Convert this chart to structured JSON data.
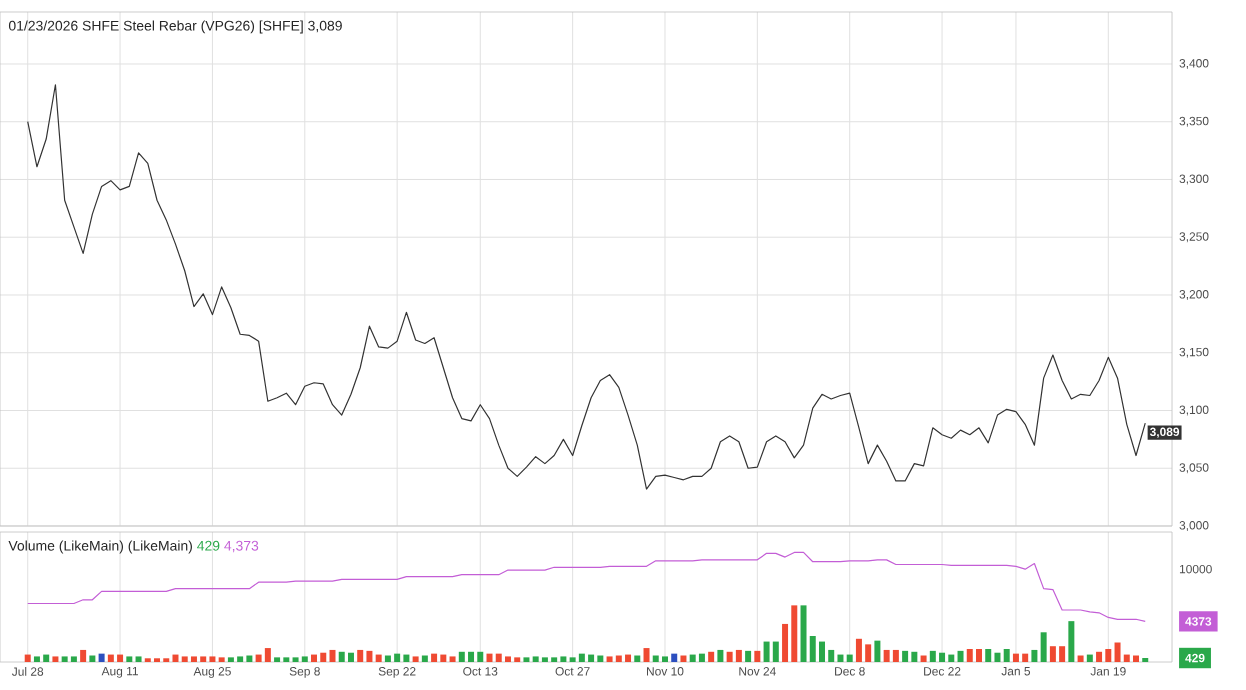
{
  "chart_data": [
    {
      "type": "line",
      "title": "01/23/2026 SHFE Steel Rebar (VPG26) [SHFE] 3,089",
      "categories": [
        null,
        null,
        null,
        null,
        null,
        null,
        null,
        null,
        null,
        null,
        null,
        null,
        null,
        null,
        null,
        null,
        null,
        null,
        null,
        null,
        null,
        null,
        null,
        null,
        null,
        null,
        null,
        null,
        null,
        null,
        null,
        null,
        null,
        null,
        null,
        null,
        null,
        null,
        null,
        null,
        null,
        null,
        null,
        null,
        null,
        null,
        null,
        null,
        null,
        null,
        null,
        null,
        null,
        null,
        null,
        null,
        null,
        null,
        null,
        null,
        null,
        null,
        null,
        null,
        null,
        null,
        null,
        null,
        null,
        null,
        null,
        null,
        null,
        null,
        null,
        null,
        null,
        null,
        null,
        null,
        null,
        null,
        null,
        null,
        null,
        null,
        null,
        null,
        null,
        null,
        null,
        null,
        null,
        null,
        null,
        null,
        null,
        null,
        null,
        null,
        null,
        null,
        null,
        null,
        null,
        null,
        null,
        null,
        null,
        null,
        null,
        null,
        null,
        null,
        null,
        null,
        null,
        null,
        null,
        null,
        null,
        null
      ],
      "series": [
        {
          "color": "#333333",
          "values": [
            3350,
            3311,
            3335,
            3382,
            3282,
            3259,
            3236,
            3270,
            3294,
            3299,
            3291,
            3294,
            3323,
            3314,
            3282,
            3265,
            3244,
            3221,
            3190,
            3201,
            3183,
            3207,
            3189,
            3166,
            3165,
            3160,
            3108,
            3111,
            3115,
            3105,
            3121,
            3124,
            3123,
            3105,
            3096,
            3114,
            3137,
            3173,
            3155,
            3154,
            3160,
            3185,
            3161,
            3158,
            3163,
            3137,
            3111,
            3093,
            3091,
            3105,
            3093,
            3070,
            3050,
            3043,
            3051,
            3060,
            3054,
            3061,
            3075,
            3061,
            3087,
            3111,
            3126,
            3131,
            3120,
            3096,
            3070,
            3032,
            3043,
            3044,
            3042,
            3040,
            3043,
            3043,
            3050,
            3073,
            3078,
            3073,
            3050,
            3051,
            3073,
            3078,
            3073,
            3059,
            3070,
            3102,
            3114,
            3110,
            3113,
            3115,
            3085,
            3054,
            3070,
            3056,
            3039,
            3039,
            3054,
            3052,
            3085,
            3079,
            3076,
            3083,
            3079,
            3085,
            3072,
            3096,
            3101,
            3099,
            3088,
            3070,
            3128,
            3148,
            3126,
            3110,
            3114,
            3113,
            3126,
            3146,
            3128,
            3088,
            3061,
            3089
          ],
          "value_labels": [
            null,
            null,
            null,
            null,
            null,
            null,
            null,
            null,
            null,
            null,
            null,
            null,
            null,
            null,
            null,
            null,
            null,
            null,
            null,
            null,
            null,
            null,
            null,
            null,
            null,
            null,
            null,
            null,
            null,
            null,
            null,
            null,
            null,
            null,
            null,
            null,
            null,
            null,
            null,
            null,
            null,
            null,
            null,
            null,
            null,
            null,
            null,
            null,
            null,
            null,
            null,
            null,
            null,
            null,
            null,
            null,
            null,
            null,
            null,
            null,
            null,
            null,
            null,
            null,
            null,
            null,
            null,
            null,
            null,
            null,
            null,
            null,
            null,
            null,
            null,
            null,
            null,
            null,
            null,
            null,
            null,
            null,
            null,
            null,
            null,
            null,
            null,
            null,
            null,
            null,
            null,
            null,
            null,
            null,
            null,
            null,
            null,
            null,
            null,
            null,
            null,
            null,
            null,
            null,
            null,
            null,
            null,
            null,
            null,
            null,
            null,
            null,
            null,
            null,
            null,
            null,
            null,
            null,
            null,
            null,
            null,
            "3,089"
          ]
        }
      ],
      "ylim": [
        3000,
        3445
      ],
      "yticks": [
        {
          "value": 3000,
          "label": "3,000"
        },
        {
          "value": 3050,
          "label": "3,050"
        },
        {
          "value": 3100,
          "label": "3,100"
        },
        {
          "value": 3150,
          "label": "3,150"
        },
        {
          "value": 3200,
          "label": "3,200"
        },
        {
          "value": 3250,
          "label": "3,250"
        },
        {
          "value": 3300,
          "label": "3,300"
        },
        {
          "value": 3350,
          "label": "3,350"
        },
        {
          "value": 3400,
          "label": "3,400"
        }
      ],
      "grid": true
    },
    {
      "type": "bar",
      "title": "Volume (LikeMain)  (LikeMain)",
      "annotations": [
        "429",
        "4,373"
      ],
      "categories": [
        "Jul 28",
        null,
        null,
        null,
        null,
        null,
        null,
        null,
        null,
        null,
        "Aug 11",
        null,
        null,
        null,
        null,
        null,
        null,
        null,
        null,
        null,
        "Aug 25",
        null,
        null,
        null,
        null,
        null,
        null,
        null,
        null,
        null,
        "Sep 8",
        null,
        null,
        null,
        null,
        null,
        null,
        null,
        null,
        null,
        "Sep 22",
        null,
        null,
        null,
        null,
        null,
        null,
        null,
        null,
        "Oct 13",
        null,
        null,
        null,
        null,
        null,
        null,
        null,
        null,
        null,
        "Oct 27",
        null,
        null,
        null,
        null,
        null,
        null,
        null,
        null,
        null,
        "Nov 10",
        null,
        null,
        null,
        null,
        null,
        null,
        null,
        null,
        null,
        "Nov 24",
        null,
        null,
        null,
        null,
        null,
        null,
        null,
        null,
        null,
        "Dec 8",
        null,
        null,
        null,
        null,
        null,
        null,
        null,
        null,
        null,
        "Dec 22",
        null,
        null,
        null,
        null,
        null,
        null,
        null,
        "Jan 5",
        null,
        null,
        null,
        null,
        null,
        null,
        null,
        null,
        null,
        "Jan 19",
        null,
        null,
        null,
        null
      ],
      "series": [
        {
          "type": "bar",
          "color": "#2aa84a",
          "values": [
            800,
            600,
            800,
            600,
            600,
            600,
            1300,
            700,
            900,
            800,
            800,
            600,
            600,
            400,
            400,
            400,
            800,
            600,
            600,
            600,
            600,
            500,
            500,
            600,
            700,
            800,
            1500,
            500,
            500,
            500,
            600,
            800,
            1000,
            1300,
            1100,
            1000,
            1300,
            1200,
            800,
            700,
            900,
            800,
            600,
            700,
            900,
            800,
            600,
            1100,
            1100,
            1100,
            900,
            900,
            600,
            500,
            500,
            600,
            500,
            500,
            600,
            500,
            900,
            800,
            700,
            600,
            700,
            800,
            700,
            1500,
            700,
            600,
            900,
            700,
            800,
            900,
            1100,
            1300,
            1100,
            1300,
            1200,
            1200,
            2200,
            2200,
            4100,
            6100,
            6100,
            2800,
            2200,
            1300,
            800,
            800,
            2500,
            1900,
            2300,
            1300,
            1300,
            1200,
            1100,
            700,
            1200,
            1000,
            800,
            1200,
            1400,
            1400,
            1400,
            1000,
            1400,
            900,
            900,
            1300,
            3200,
            1700,
            1700,
            4400,
            700,
            800,
            1100,
            1400,
            2100,
            800,
            700,
            429
          ],
          "colors": [
            "#ef4a32",
            "#2aa84a",
            "#2aa84a",
            "#ef4a32",
            "#2aa84a",
            "#2aa84a",
            "#ef4a32",
            "#2aa84a",
            "#2c4fbf",
            "#ef4a32",
            "#ef4a32",
            "#2aa84a",
            "#2aa84a",
            "#ef4a32",
            "#ef4a32",
            "#ef4a32",
            "#ef4a32",
            "#ef4a32",
            "#ef4a32",
            "#ef4a32",
            "#ef4a32",
            "#ef4a32",
            "#2aa84a",
            "#2aa84a",
            "#2aa84a",
            "#ef4a32",
            "#ef4a32",
            "#2aa84a",
            "#2aa84a",
            "#2aa84a",
            "#2aa84a",
            "#ef4a32",
            "#ef4a32",
            "#ef4a32",
            "#2aa84a",
            "#2aa84a",
            "#ef4a32",
            "#ef4a32",
            "#ef4a32",
            "#2aa84a",
            "#2aa84a",
            "#2aa84a",
            "#ef4a32",
            "#2aa84a",
            "#ef4a32",
            "#ef4a32",
            "#ef4a32",
            "#2aa84a",
            "#2aa84a",
            "#2aa84a",
            "#ef4a32",
            "#ef4a32",
            "#ef4a32",
            "#ef4a32",
            "#2aa84a",
            "#2aa84a",
            "#2aa84a",
            "#2aa84a",
            "#2aa84a",
            "#2aa84a",
            "#2aa84a",
            "#2aa84a",
            "#2aa84a",
            "#ef4a32",
            "#ef4a32",
            "#ef4a32",
            "#2aa84a",
            "#ef4a32",
            "#2aa84a",
            "#2aa84a",
            "#2c4fbf",
            "#ef4a32",
            "#2aa84a",
            "#2aa84a",
            "#ef4a32",
            "#2aa84a",
            "#ef4a32",
            "#ef4a32",
            "#2aa84a",
            "#ef4a32",
            "#2aa84a",
            "#2aa84a",
            "#ef4a32",
            "#ef4a32",
            "#2aa84a",
            "#2aa84a",
            "#2aa84a",
            "#2aa84a",
            "#2aa84a",
            "#2aa84a",
            "#ef4a32",
            "#ef4a32",
            "#2aa84a",
            "#ef4a32",
            "#ef4a32",
            "#2aa84a",
            "#2aa84a",
            "#ef4a32",
            "#2aa84a",
            "#2aa84a",
            "#2aa84a",
            "#2aa84a",
            "#ef4a32",
            "#ef4a32",
            "#2aa84a",
            "#2aa84a",
            "#2aa84a",
            "#ef4a32",
            "#ef4a32",
            "#2aa84a",
            "#2aa84a",
            "#ef4a32",
            "#ef4a32",
            "#2aa84a",
            "#ef4a32",
            "#2aa84a",
            "#ef4a32",
            "#ef4a32",
            "#ef4a32",
            "#ef4a32",
            "#ef4a32",
            "#2aa84a"
          ]
        },
        {
          "type": "line",
          "color": "#c35ed6",
          "values": [
            6300,
            6300,
            6300,
            6300,
            6300,
            6300,
            6700,
            6700,
            7600,
            7600,
            7600,
            7600,
            7600,
            7600,
            7600,
            7600,
            7900,
            7900,
            7900,
            7900,
            7900,
            7900,
            7900,
            7900,
            7900,
            8600,
            8600,
            8600,
            8600,
            8700,
            8700,
            8700,
            8700,
            8700,
            8900,
            8900,
            8900,
            8900,
            8900,
            8900,
            8900,
            9200,
            9200,
            9200,
            9200,
            9200,
            9200,
            9400,
            9400,
            9400,
            9400,
            9400,
            9900,
            9900,
            9900,
            9900,
            9900,
            10200,
            10200,
            10200,
            10200,
            10200,
            10200,
            10300,
            10300,
            10300,
            10300,
            10300,
            10900,
            10900,
            10900,
            10900,
            10900,
            11000,
            11000,
            11000,
            11000,
            11000,
            11000,
            11000,
            11700,
            11700,
            11300,
            11800,
            11800,
            10800,
            10800,
            10800,
            10800,
            10900,
            10900,
            10900,
            11000,
            11000,
            10500,
            10500,
            10500,
            10500,
            10500,
            10500,
            10400,
            10400,
            10400,
            10400,
            10400,
            10400,
            10400,
            10300,
            10000,
            10600,
            7900,
            7800,
            5600,
            5600,
            5600,
            5400,
            5300,
            4800,
            4600,
            4600,
            4600,
            4373
          ]
        }
      ],
      "ylim": [
        0,
        14000
      ],
      "yticks": [
        {
          "value": 429,
          "label": "429"
        },
        {
          "value": 4373,
          "label": "4373"
        },
        10000
      ],
      "grid": "x"
    }
  ]
}
